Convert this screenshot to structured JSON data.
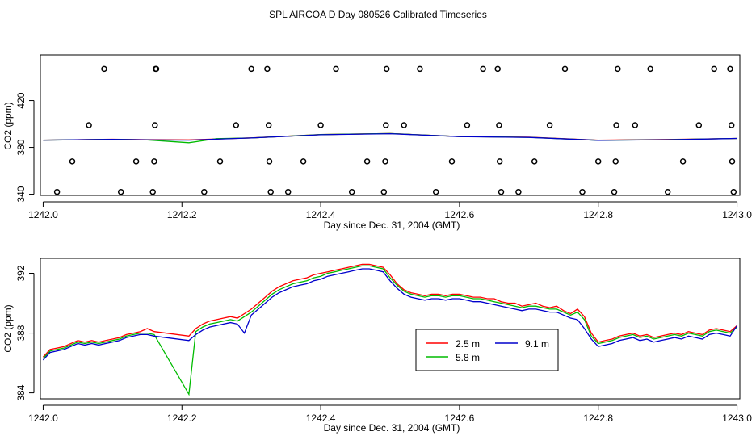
{
  "page": {
    "title": "SPL AIRCOA D  Day 080526  Calibrated Timeseries"
  },
  "chart_data": [
    {
      "type": "line",
      "panel": "top",
      "xlabel": "Day since Dec. 31, 2004 (GMT)",
      "ylabel": "CO2 (ppm)",
      "xlim": [
        1241.996,
        1243.004
      ],
      "ylim": [
        339,
        459
      ],
      "xticks": [
        "1242.0",
        "1242.2",
        "1242.4",
        "1242.6",
        "1242.8",
        "1243.0"
      ],
      "xtick_values": [
        1242.0,
        1242.2,
        1242.4,
        1242.6,
        1242.8,
        1243.0
      ],
      "yticks": [
        "340",
        "380",
        "420"
      ],
      "ytick_values": [
        340,
        380,
        420
      ],
      "grid": false,
      "series": [
        {
          "color": "#ff0000",
          "x": [
            1242.0,
            1242.1,
            1242.15,
            1242.21,
            1242.3,
            1242.4,
            1242.5,
            1242.6,
            1242.7,
            1242.8,
            1242.9,
            1243.0
          ],
          "y": [
            386.2,
            386.9,
            386.6,
            386.4,
            388.1,
            390.9,
            391.8,
            389.3,
            388.7,
            386.2,
            386.7,
            387.6
          ]
        },
        {
          "color": "#00bb00",
          "x": [
            1242.0,
            1242.1,
            1242.15,
            1242.21,
            1242.25,
            1242.3,
            1242.4,
            1242.5,
            1242.6,
            1242.7,
            1242.8,
            1242.9,
            1243.0
          ],
          "y": [
            386.2,
            386.8,
            386.4,
            384.0,
            387.4,
            388.0,
            390.9,
            391.8,
            389.3,
            388.6,
            386.0,
            386.6,
            387.6
          ]
        },
        {
          "color": "#0000cc",
          "x": [
            1242.0,
            1242.1,
            1242.15,
            1242.21,
            1242.3,
            1242.4,
            1242.5,
            1242.6,
            1242.7,
            1242.8,
            1242.9,
            1243.0
          ],
          "y": [
            386.2,
            386.8,
            386.4,
            386.2,
            388.0,
            390.8,
            391.7,
            389.2,
            388.5,
            386.0,
            386.5,
            387.6
          ]
        }
      ],
      "markers": {
        "symbol": "open-circle",
        "x": [
          1242.02,
          1242.042,
          1242.066,
          1242.088,
          1242.112,
          1242.134,
          1242.158,
          1242.16,
          1242.161,
          1242.162,
          1242.163,
          1242.232,
          1242.255,
          1242.278,
          1242.3,
          1242.323,
          1242.325,
          1242.326,
          1242.328,
          1242.353,
          1242.375,
          1242.4,
          1242.422,
          1242.445,
          1242.467,
          1242.491,
          1242.493,
          1242.494,
          1242.495,
          1242.52,
          1242.543,
          1242.566,
          1242.589,
          1242.611,
          1242.634,
          1242.655,
          1242.657,
          1242.658,
          1242.66,
          1242.685,
          1242.708,
          1242.73,
          1242.752,
          1242.777,
          1242.8,
          1242.823,
          1242.825,
          1242.826,
          1242.828,
          1242.853,
          1242.875,
          1242.9,
          1242.922,
          1242.945,
          1242.967,
          1242.99,
          1242.992,
          1242.993,
          1242.995
        ],
        "y": [
          342,
          368,
          399,
          447,
          342,
          368,
          342,
          368,
          399,
          447,
          447,
          342,
          368,
          399,
          447,
          447,
          399,
          368,
          342,
          342,
          368,
          399,
          447,
          342,
          368,
          342,
          368,
          399,
          447,
          399,
          447,
          342,
          368,
          399,
          447,
          447,
          399,
          368,
          342,
          342,
          368,
          399,
          447,
          342,
          368,
          342,
          368,
          399,
          447,
          399,
          447,
          342,
          368,
          399,
          447,
          447,
          399,
          368,
          342
        ]
      }
    },
    {
      "type": "line",
      "panel": "bottom",
      "xlabel": "Day since Dec. 31, 2004 (GMT)",
      "ylabel": "CO2 (ppm)",
      "xlim": [
        1241.996,
        1243.004
      ],
      "ylim": [
        383.6,
        393.0
      ],
      "xticks": [
        "1242.0",
        "1242.2",
        "1242.4",
        "1242.6",
        "1242.8",
        "1243.0"
      ],
      "xtick_values": [
        1242.0,
        1242.2,
        1242.4,
        1242.6,
        1242.8,
        1243.0
      ],
      "yticks": [
        "384",
        "388",
        "392"
      ],
      "ytick_values": [
        384,
        388,
        392
      ],
      "grid": false,
      "legend": {
        "position": "lower-center-right",
        "columns": 2
      },
      "series": [
        {
          "name": "2.5 m",
          "color": "#ff0000",
          "x": [
            1242.0,
            1242.01,
            1242.02,
            1242.03,
            1242.04,
            1242.05,
            1242.06,
            1242.07,
            1242.08,
            1242.09,
            1242.1,
            1242.11,
            1242.12,
            1242.13,
            1242.14,
            1242.15,
            1242.16,
            1242.21,
            1242.22,
            1242.23,
            1242.24,
            1242.25,
            1242.26,
            1242.27,
            1242.28,
            1242.29,
            1242.3,
            1242.31,
            1242.32,
            1242.33,
            1242.34,
            1242.35,
            1242.36,
            1242.37,
            1242.38,
            1242.39,
            1242.4,
            1242.41,
            1242.42,
            1242.43,
            1242.44,
            1242.45,
            1242.46,
            1242.47,
            1242.48,
            1242.49,
            1242.5,
            1242.51,
            1242.52,
            1242.53,
            1242.54,
            1242.55,
            1242.56,
            1242.57,
            1242.58,
            1242.59,
            1242.6,
            1242.61,
            1242.62,
            1242.63,
            1242.64,
            1242.65,
            1242.66,
            1242.67,
            1242.68,
            1242.69,
            1242.7,
            1242.71,
            1242.72,
            1242.73,
            1242.74,
            1242.75,
            1242.76,
            1242.77,
            1242.78,
            1242.79,
            1242.8,
            1242.81,
            1242.82,
            1242.83,
            1242.84,
            1242.85,
            1242.86,
            1242.87,
            1242.88,
            1242.89,
            1242.9,
            1242.91,
            1242.92,
            1242.93,
            1242.94,
            1242.95,
            1242.96,
            1242.97,
            1242.98,
            1242.99,
            1243.0
          ],
          "y": [
            386.4,
            386.9,
            387.0,
            387.1,
            387.3,
            387.5,
            387.4,
            387.5,
            387.4,
            387.5,
            387.6,
            387.7,
            387.9,
            388.0,
            388.1,
            388.3,
            388.1,
            387.8,
            388.3,
            388.6,
            388.8,
            388.9,
            389.0,
            389.1,
            389.0,
            389.3,
            389.6,
            390.0,
            390.4,
            390.8,
            391.1,
            391.3,
            391.5,
            391.6,
            391.7,
            391.9,
            392.0,
            392.1,
            392.2,
            392.3,
            392.4,
            392.5,
            392.6,
            392.6,
            392.5,
            392.4,
            391.9,
            391.3,
            390.9,
            390.7,
            390.6,
            390.5,
            390.6,
            390.6,
            390.5,
            390.6,
            390.6,
            390.5,
            390.4,
            390.4,
            390.3,
            390.3,
            390.1,
            390.0,
            390.0,
            389.8,
            389.9,
            390.0,
            389.8,
            389.7,
            389.8,
            389.5,
            389.3,
            389.6,
            389.1,
            388.0,
            387.4,
            387.5,
            387.6,
            387.8,
            387.9,
            388.0,
            387.8,
            387.9,
            387.7,
            387.8,
            387.9,
            388.0,
            387.9,
            388.1,
            388.0,
            387.9,
            388.2,
            388.3,
            388.2,
            388.1,
            388.5
          ]
        },
        {
          "name": "5.8 m",
          "color": "#00bb00",
          "x": [
            1242.0,
            1242.01,
            1242.02,
            1242.03,
            1242.04,
            1242.05,
            1242.06,
            1242.07,
            1242.08,
            1242.09,
            1242.1,
            1242.11,
            1242.12,
            1242.13,
            1242.14,
            1242.15,
            1242.16,
            1242.21,
            1242.22,
            1242.23,
            1242.24,
            1242.25,
            1242.26,
            1242.27,
            1242.28,
            1242.29,
            1242.3,
            1242.31,
            1242.32,
            1242.33,
            1242.34,
            1242.35,
            1242.36,
            1242.37,
            1242.38,
            1242.39,
            1242.4,
            1242.41,
            1242.42,
            1242.43,
            1242.44,
            1242.45,
            1242.46,
            1242.47,
            1242.48,
            1242.49,
            1242.5,
            1242.51,
            1242.52,
            1242.53,
            1242.54,
            1242.55,
            1242.56,
            1242.57,
            1242.58,
            1242.59,
            1242.6,
            1242.61,
            1242.62,
            1242.63,
            1242.64,
            1242.65,
            1242.66,
            1242.67,
            1242.68,
            1242.69,
            1242.7,
            1242.71,
            1242.72,
            1242.73,
            1242.74,
            1242.75,
            1242.76,
            1242.77,
            1242.78,
            1242.79,
            1242.8,
            1242.81,
            1242.82,
            1242.83,
            1242.84,
            1242.85,
            1242.86,
            1242.87,
            1242.88,
            1242.89,
            1242.9,
            1242.91,
            1242.92,
            1242.93,
            1242.94,
            1242.95,
            1242.96,
            1242.97,
            1242.98,
            1242.99,
            1243.0
          ],
          "y": [
            386.3,
            386.8,
            386.9,
            387.0,
            387.2,
            387.4,
            387.3,
            387.4,
            387.3,
            387.4,
            387.5,
            387.6,
            387.8,
            387.9,
            388.0,
            388.0,
            387.9,
            383.9,
            388.1,
            388.4,
            388.6,
            388.7,
            388.8,
            388.9,
            388.8,
            389.1,
            389.4,
            389.8,
            390.2,
            390.6,
            390.9,
            391.1,
            391.3,
            391.4,
            391.5,
            391.7,
            391.8,
            392.0,
            392.1,
            392.2,
            392.3,
            392.4,
            392.5,
            392.5,
            392.4,
            392.3,
            391.7,
            391.2,
            390.8,
            390.6,
            390.5,
            390.4,
            390.5,
            390.5,
            390.4,
            390.5,
            390.5,
            390.4,
            390.3,
            390.3,
            390.2,
            390.1,
            390.0,
            389.9,
            389.8,
            389.7,
            389.8,
            389.8,
            389.7,
            389.6,
            389.6,
            389.4,
            389.2,
            389.4,
            388.9,
            387.8,
            387.3,
            387.4,
            387.5,
            387.7,
            387.8,
            387.9,
            387.7,
            387.8,
            387.6,
            387.7,
            387.8,
            387.9,
            387.8,
            388.0,
            387.9,
            387.8,
            388.1,
            388.2,
            388.1,
            388.0,
            388.4
          ]
        },
        {
          "name": "9.1 m",
          "color": "#0000cc",
          "x": [
            1242.0,
            1242.01,
            1242.02,
            1242.03,
            1242.04,
            1242.05,
            1242.06,
            1242.07,
            1242.08,
            1242.09,
            1242.1,
            1242.11,
            1242.12,
            1242.13,
            1242.14,
            1242.15,
            1242.16,
            1242.21,
            1242.22,
            1242.23,
            1242.24,
            1242.25,
            1242.26,
            1242.27,
            1242.28,
            1242.29,
            1242.3,
            1242.31,
            1242.32,
            1242.33,
            1242.34,
            1242.35,
            1242.36,
            1242.37,
            1242.38,
            1242.39,
            1242.4,
            1242.41,
            1242.42,
            1242.43,
            1242.44,
            1242.45,
            1242.46,
            1242.47,
            1242.48,
            1242.49,
            1242.5,
            1242.51,
            1242.52,
            1242.53,
            1242.54,
            1242.55,
            1242.56,
            1242.57,
            1242.58,
            1242.59,
            1242.6,
            1242.61,
            1242.62,
            1242.63,
            1242.64,
            1242.65,
            1242.66,
            1242.67,
            1242.68,
            1242.69,
            1242.7,
            1242.71,
            1242.72,
            1242.73,
            1242.74,
            1242.75,
            1242.76,
            1242.77,
            1242.78,
            1242.79,
            1242.8,
            1242.81,
            1242.82,
            1242.83,
            1242.84,
            1242.85,
            1242.86,
            1242.87,
            1242.88,
            1242.89,
            1242.9,
            1242.91,
            1242.92,
            1242.93,
            1242.94,
            1242.95,
            1242.96,
            1242.97,
            1242.98,
            1242.99,
            1243.0
          ],
          "y": [
            386.2,
            386.7,
            386.8,
            386.9,
            387.1,
            387.3,
            387.2,
            387.3,
            387.2,
            387.3,
            387.4,
            387.5,
            387.7,
            387.8,
            387.9,
            387.9,
            387.8,
            387.5,
            387.9,
            388.2,
            388.4,
            388.5,
            388.6,
            388.7,
            388.6,
            388.0,
            389.2,
            389.6,
            390.0,
            390.4,
            390.7,
            390.9,
            391.1,
            391.2,
            391.3,
            391.5,
            391.6,
            391.8,
            391.9,
            392.0,
            392.1,
            392.2,
            392.3,
            392.3,
            392.2,
            392.1,
            391.5,
            391.0,
            390.6,
            390.4,
            390.3,
            390.2,
            390.3,
            390.3,
            390.2,
            390.3,
            390.3,
            390.2,
            390.1,
            390.1,
            390.0,
            389.9,
            389.8,
            389.7,
            389.6,
            389.5,
            389.6,
            389.6,
            389.5,
            389.4,
            389.4,
            389.2,
            389.0,
            388.9,
            388.3,
            387.6,
            387.1,
            387.2,
            387.3,
            387.5,
            387.6,
            387.7,
            387.5,
            387.6,
            387.4,
            387.5,
            387.6,
            387.7,
            387.6,
            387.8,
            387.7,
            387.6,
            387.9,
            388.0,
            387.9,
            387.8,
            388.5
          ]
        }
      ]
    }
  ]
}
